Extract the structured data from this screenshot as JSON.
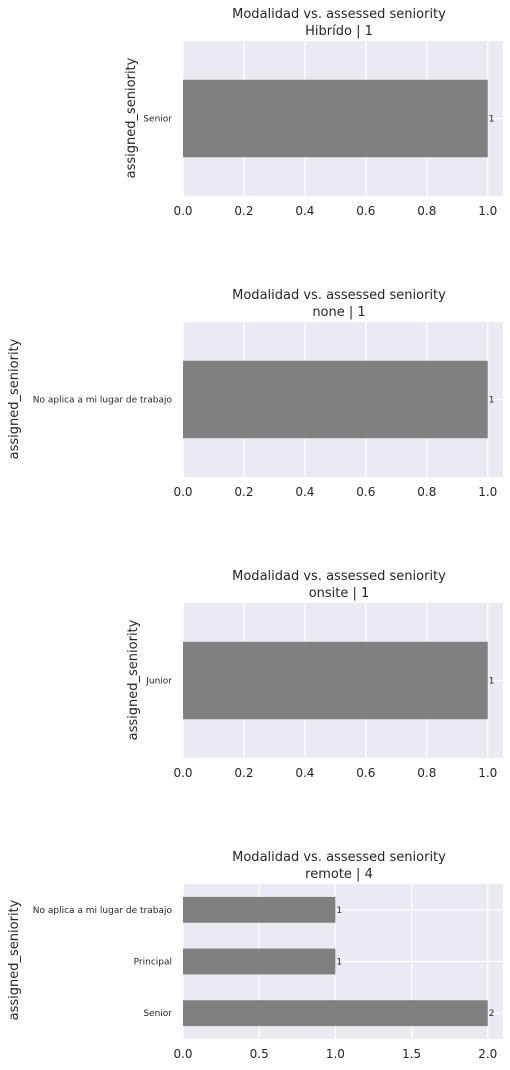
{
  "chart_data": [
    {
      "type": "bar",
      "orientation": "horizontal",
      "title": "Modalidad vs. assessed seniority",
      "subtitle": "Hibrído | 1",
      "ylabel": "assigned_seniority",
      "xlabel": "",
      "categories": [
        "Senior"
      ],
      "values": [
        1
      ],
      "data_labels": [
        "1"
      ],
      "xlim": [
        0,
        1.05
      ],
      "xticks": [
        0,
        0.2,
        0.4,
        0.6,
        0.8,
        1.0
      ],
      "xtick_labels": [
        "0.0",
        "0.2",
        "0.4",
        "0.6",
        "0.8",
        "1.0"
      ],
      "grid": true,
      "bar_color": "#808080",
      "background_color": "#eaeaf2"
    },
    {
      "type": "bar",
      "orientation": "horizontal",
      "title": "Modalidad vs. assessed seniority",
      "subtitle": "none | 1",
      "ylabel": "assigned_seniority",
      "xlabel": "",
      "categories": [
        "No aplica a mi lugar de trabajo"
      ],
      "values": [
        1
      ],
      "data_labels": [
        "1"
      ],
      "xlim": [
        0,
        1.05
      ],
      "xticks": [
        0,
        0.2,
        0.4,
        0.6,
        0.8,
        1.0
      ],
      "xtick_labels": [
        "0.0",
        "0.2",
        "0.4",
        "0.6",
        "0.8",
        "1.0"
      ],
      "grid": true,
      "bar_color": "#808080",
      "background_color": "#eaeaf2"
    },
    {
      "type": "bar",
      "orientation": "horizontal",
      "title": "Modalidad vs. assessed seniority",
      "subtitle": "onsite | 1",
      "ylabel": "assigned_seniority",
      "xlabel": "",
      "categories": [
        "Junior"
      ],
      "values": [
        1
      ],
      "data_labels": [
        "1"
      ],
      "xlim": [
        0,
        1.05
      ],
      "xticks": [
        0,
        0.2,
        0.4,
        0.6,
        0.8,
        1.0
      ],
      "xtick_labels": [
        "0.0",
        "0.2",
        "0.4",
        "0.6",
        "0.8",
        "1.0"
      ],
      "grid": true,
      "bar_color": "#808080",
      "background_color": "#eaeaf2"
    },
    {
      "type": "bar",
      "orientation": "horizontal",
      "title": "Modalidad vs. assessed seniority",
      "subtitle": "remote | 4",
      "ylabel": "assigned_seniority",
      "xlabel": "",
      "categories": [
        "No aplica a mi lugar de trabajo",
        "Principal",
        "Senior"
      ],
      "values": [
        1,
        1,
        2
      ],
      "data_labels": [
        "1",
        "1",
        "2"
      ],
      "xlim": [
        0,
        2.1
      ],
      "xticks": [
        0,
        0.5,
        1.0,
        1.5,
        2.0
      ],
      "xtick_labels": [
        "0.0",
        "0.5",
        "1.0",
        "1.5",
        "2.0"
      ],
      "grid": true,
      "bar_color": "#808080",
      "background_color": "#eaeaf2"
    }
  ]
}
